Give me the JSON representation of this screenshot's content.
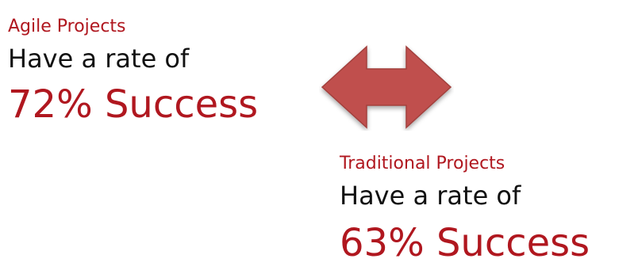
{
  "agile": {
    "heading": "Agile Projects",
    "rate_text": "Have a rate of",
    "result": "72% Success"
  },
  "traditional": {
    "heading": "Traditional Projects",
    "rate_text": "Have a rate of",
    "result": "63% Success"
  },
  "arrow": {
    "icon": "double-arrow-icon",
    "fill": "#c0504d",
    "stroke": "#a2403d"
  },
  "colors": {
    "accent": "#b0171f",
    "text": "#111111",
    "background": "#ffffff"
  }
}
